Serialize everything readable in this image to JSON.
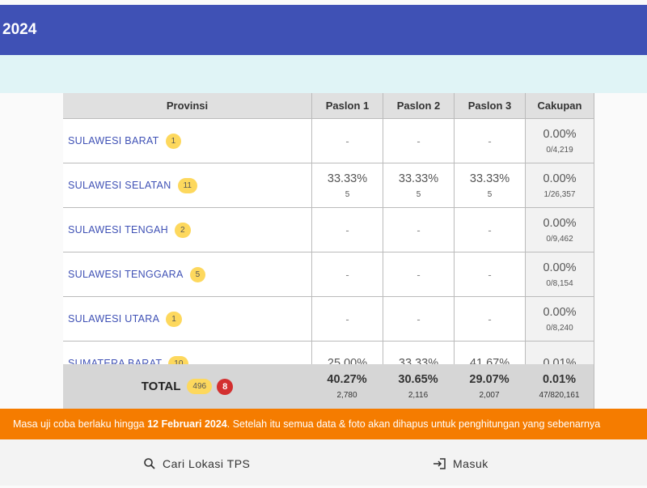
{
  "header": {
    "title": "2024"
  },
  "table": {
    "columns": [
      "Provinsi",
      "Paslon 1",
      "Paslon 2",
      "Paslon 3",
      "Cakupan"
    ],
    "rows": [
      {
        "province": "SULAWESI BARAT",
        "badge": "1",
        "paslon": [
          "-",
          "-",
          "-"
        ],
        "cakupan": {
          "pct": "0.00%",
          "frac": "0/4,219"
        }
      },
      {
        "province": "SULAWESI SELATAN",
        "badge": "11",
        "paslon": [
          {
            "pct": "33.33%",
            "count": "5"
          },
          {
            "pct": "33.33%",
            "count": "5"
          },
          {
            "pct": "33.33%",
            "count": "5"
          }
        ],
        "cakupan": {
          "pct": "0.00%",
          "frac": "1/26,357"
        }
      },
      {
        "province": "SULAWESI TENGAH",
        "badge": "2",
        "paslon": [
          "-",
          "-",
          "-"
        ],
        "cakupan": {
          "pct": "0.00%",
          "frac": "0/9,462"
        }
      },
      {
        "province": "SULAWESI TENGGARA",
        "badge": "5",
        "paslon": [
          "-",
          "-",
          "-"
        ],
        "cakupan": {
          "pct": "0.00%",
          "frac": "0/8,154"
        }
      },
      {
        "province": "SULAWESI UTARA",
        "badge": "1",
        "paslon": [
          "-",
          "-",
          "-"
        ],
        "cakupan": {
          "pct": "0.00%",
          "frac": "0/8,240"
        }
      },
      {
        "province": "SUMATERA BARAT",
        "badge": "10",
        "paslon": [
          {
            "pct": "25.00%"
          },
          {
            "pct": "33.33%"
          },
          {
            "pct": "41.67%"
          }
        ],
        "cakupan": {
          "pct": "0.01%"
        }
      }
    ],
    "total": {
      "label": "TOTAL",
      "count": "496",
      "alert": "8",
      "paslon": [
        {
          "pct": "40.27%",
          "count": "2,780"
        },
        {
          "pct": "30.65%",
          "count": "2,116"
        },
        {
          "pct": "29.07%",
          "count": "2,007"
        }
      ],
      "cakupan": {
        "pct": "0.01%",
        "frac": "47/820,161"
      }
    }
  },
  "banner": {
    "before": "Masa uji coba berlaku hingga ",
    "bold": "12 Februari 2024",
    "after": ". Setelah itu semua data & foto akan dihapus untuk penghitungan yang sebenarnya"
  },
  "nav": [
    "Cari Lokasi TPS",
    "Masuk"
  ]
}
